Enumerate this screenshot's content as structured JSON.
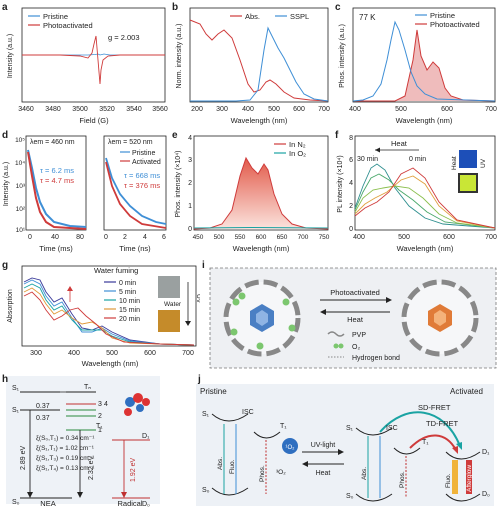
{
  "colors": {
    "blue": "#3f8fd6",
    "red": "#cf3b3b",
    "dark": "#222222",
    "teal": "#1aa3a3"
  },
  "panels": {
    "a": {
      "letter": "a",
      "legend": [
        "Pristine",
        "Photoactivated"
      ],
      "annotation": "g = 2.003",
      "xlabel": "Field (G)",
      "ylabel": "Intensity (a.u.)",
      "xticks": [
        "3460",
        "3480",
        "3500",
        "3520",
        "3540",
        "3560"
      ]
    },
    "b": {
      "letter": "b",
      "legend": [
        "Abs.",
        "SSPL"
      ],
      "xlabel": "Wavelength (nm)",
      "ylabel": "Norm. intensity (a.u.)",
      "xticks": [
        "200",
        "300",
        "400",
        "500",
        "600",
        "700"
      ]
    },
    "c": {
      "letter": "c",
      "legend": [
        "Pristine",
        "Photoactivated"
      ],
      "annotation": "77 K",
      "xlabel": "Wavelength (nm)",
      "ylabel": "Phos. intensity (a.u.)",
      "xticks": [
        "400",
        "500",
        "600",
        "700"
      ]
    },
    "d": {
      "letter": "d",
      "left_title": "λem = 460 nm",
      "right_title": "λem = 520 nm",
      "tau_left": [
        "τ = 6.2 ms",
        "τ = 4.7 ms"
      ],
      "tau_right": [
        "τ = 668 ms",
        "τ = 376 ms"
      ],
      "legend": [
        "Pristine",
        "Activated"
      ],
      "xlabel_left": "Time (ms)",
      "xlabel_right": "Time (ns)",
      "ylabel": "Intensity (a.u.)",
      "xticks_left": [
        "0",
        "40",
        "80"
      ],
      "xticks_right": [
        "0",
        "2",
        "4",
        "6"
      ],
      "yticks": [
        "10⁵",
        "10⁴",
        "10³",
        "10²",
        "10¹"
      ]
    },
    "e": {
      "letter": "e",
      "legend": [
        "In N₂",
        "In O₂"
      ],
      "xlabel": "Wavelength (nm)",
      "ylabel": "Phos. intensity (×10⁴)",
      "xticks": [
        "450",
        "500",
        "550",
        "600",
        "650",
        "700",
        "750"
      ],
      "yticks": [
        "0",
        "1",
        "2",
        "3",
        "4"
      ]
    },
    "f": {
      "letter": "f",
      "heat_label": "Heat",
      "t_start": "30 min",
      "t_end": "0 min",
      "xlabel": "Wavelength (nm)",
      "ylabel": "PL intensity (×10⁴)",
      "xticks": [
        "400",
        "500",
        "600",
        "700"
      ],
      "yticks": [
        "0",
        "2",
        "4",
        "6",
        "8"
      ],
      "inset_labels": [
        "Heat",
        "UV"
      ]
    },
    "g": {
      "letter": "g",
      "title": "Water fuming",
      "legend": [
        "0 min",
        "5 min",
        "10 min",
        "15 min",
        "20 min"
      ],
      "xlabel": "Wavelength (nm)",
      "ylabel": "Absorption",
      "xticks": [
        "300",
        "400",
        "500",
        "600",
        "700"
      ],
      "inset_labels": [
        "UV",
        "Water"
      ]
    },
    "h": {
      "letter": "h",
      "levels": [
        "S₁",
        "S₁",
        "S₀",
        "Tₙ",
        "T₁",
        "D₁",
        "D₀"
      ],
      "numbers": [
        "3",
        "4",
        "2",
        "1"
      ],
      "gaps": [
        "0.37",
        "0.37"
      ],
      "energies": [
        "2.89 eV",
        "2.32 eV",
        "1.92 eV"
      ],
      "soc": [
        "ξ(S₀,T₁) = 0.34 cm⁻¹",
        "ξ(S₁,T₁) = 1.02 cm⁻¹",
        "ξ(S₁,T₃) = 0.19 cm⁻¹",
        "ξ(S₁,T₄) = 0.13 cm⁻¹"
      ],
      "footers": [
        "NEA",
        "Radical"
      ]
    },
    "i": {
      "letter": "i",
      "forward": "Photoactivated",
      "back": "Heat",
      "legend": [
        "PVP",
        "O₂",
        "Hydrogen bond"
      ]
    },
    "j": {
      "letter": "j",
      "left_title": "Pristine",
      "right_title": "Activated",
      "left_labels": [
        "S₁",
        "S₀",
        "ISC",
        "T₁",
        "Abs.",
        "Fluo.",
        "Phos.",
        "¹O₂",
        "³O₂"
      ],
      "arrows": [
        "UV-light",
        "Heat"
      ],
      "right_labels": [
        "S₁",
        "S₀",
        "ISC",
        "T₁",
        "Abs.",
        "Phos.",
        "D₁",
        "D₀",
        "Fluo.",
        "Afterglow"
      ],
      "fret": [
        "SD-FRET",
        "TD-FRET"
      ]
    }
  }
}
